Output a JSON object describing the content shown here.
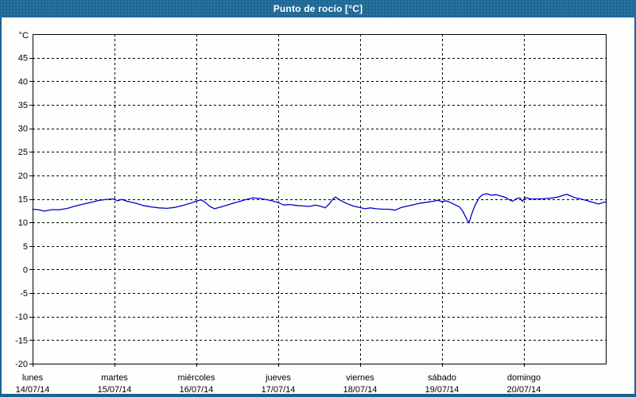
{
  "titlebar": {
    "title": "Punto de rocío [°C]"
  },
  "colors": {
    "titlebar_bg": "#1e6896",
    "frame_border": "#1c6292",
    "panel_bg": "#fdfffd",
    "plot_border": "#000000",
    "grid": "#000000",
    "line": "#0000cc",
    "text": "#000000",
    "title_text": "#ffffff"
  },
  "chart_data": {
    "type": "line",
    "title": "Punto de rocío [°C]",
    "y_unit_label": "°C",
    "ylim": [
      -20,
      50
    ],
    "y_tick_labels": [
      45,
      40,
      35,
      30,
      25,
      20,
      15,
      10,
      5,
      0,
      -5,
      -10,
      -15,
      -20
    ],
    "grid": "dashed",
    "legend": "none",
    "x_range_days": 7,
    "x_axis_days": [
      {
        "name": "lunes",
        "date": "14/07/14"
      },
      {
        "name": "martes",
        "date": "15/07/14"
      },
      {
        "name": "miércoles",
        "date": "16/07/14"
      },
      {
        "name": "jueves",
        "date": "17/07/14"
      },
      {
        "name": "viernes",
        "date": "18/07/14"
      },
      {
        "name": "sábado",
        "date": "19/07/14"
      },
      {
        "name": "domingo",
        "date": "20/07/14"
      }
    ],
    "series": [
      {
        "name": "Punto de rocío",
        "unit": "°C",
        "color": "#0000cc",
        "points": [
          [
            0.0,
            12.8
          ],
          [
            0.068,
            12.7
          ],
          [
            0.146,
            12.4
          ],
          [
            0.233,
            12.7
          ],
          [
            0.33,
            12.7
          ],
          [
            0.427,
            13.0
          ],
          [
            0.524,
            13.5
          ],
          [
            0.621,
            13.9
          ],
          [
            0.718,
            14.3
          ],
          [
            0.816,
            14.7
          ],
          [
            0.903,
            14.9
          ],
          [
            0.99,
            15.0
          ],
          [
            1.039,
            14.6
          ],
          [
            1.087,
            14.9
          ],
          [
            1.155,
            14.5
          ],
          [
            1.252,
            14.1
          ],
          [
            1.35,
            13.6
          ],
          [
            1.447,
            13.3
          ],
          [
            1.544,
            13.1
          ],
          [
            1.641,
            13.0
          ],
          [
            1.738,
            13.2
          ],
          [
            1.835,
            13.6
          ],
          [
            1.932,
            14.1
          ],
          [
            2.01,
            14.6
          ],
          [
            2.058,
            14.8
          ],
          [
            2.107,
            14.3
          ],
          [
            2.165,
            13.4
          ],
          [
            2.223,
            12.9
          ],
          [
            2.301,
            13.3
          ],
          [
            2.379,
            13.7
          ],
          [
            2.456,
            14.1
          ],
          [
            2.534,
            14.5
          ],
          [
            2.612,
            14.9
          ],
          [
            2.689,
            15.2
          ],
          [
            2.767,
            15.1
          ],
          [
            2.845,
            14.9
          ],
          [
            2.922,
            14.6
          ],
          [
            3.0,
            14.2
          ],
          [
            3.068,
            13.7
          ],
          [
            3.146,
            13.8
          ],
          [
            3.223,
            13.6
          ],
          [
            3.301,
            13.5
          ],
          [
            3.379,
            13.4
          ],
          [
            3.456,
            13.7
          ],
          [
            3.524,
            13.4
          ],
          [
            3.573,
            13.1
          ],
          [
            3.621,
            13.9
          ],
          [
            3.67,
            15.0
          ],
          [
            3.699,
            15.4
          ],
          [
            3.748,
            14.8
          ],
          [
            3.825,
            14.1
          ],
          [
            3.913,
            13.5
          ],
          [
            3.99,
            13.2
          ],
          [
            4.058,
            12.9
          ],
          [
            4.126,
            13.1
          ],
          [
            4.194,
            12.9
          ],
          [
            4.272,
            12.8
          ],
          [
            4.35,
            12.8
          ],
          [
            4.427,
            12.6
          ],
          [
            4.505,
            13.2
          ],
          [
            4.583,
            13.5
          ],
          [
            4.66,
            13.8
          ],
          [
            4.738,
            14.1
          ],
          [
            4.816,
            14.3
          ],
          [
            4.893,
            14.5
          ],
          [
            4.951,
            14.7
          ],
          [
            5.0,
            14.4
          ],
          [
            5.049,
            14.6
          ],
          [
            5.107,
            14.2
          ],
          [
            5.165,
            13.7
          ],
          [
            5.214,
            13.3
          ],
          [
            5.252,
            12.4
          ],
          [
            5.282,
            11.4
          ],
          [
            5.311,
            10.4
          ],
          [
            5.33,
            9.9
          ],
          [
            5.359,
            11.6
          ],
          [
            5.388,
            13.0
          ],
          [
            5.417,
            14.1
          ],
          [
            5.456,
            15.3
          ],
          [
            5.495,
            15.9
          ],
          [
            5.544,
            16.1
          ],
          [
            5.602,
            15.8
          ],
          [
            5.66,
            15.9
          ],
          [
            5.718,
            15.6
          ],
          [
            5.777,
            15.3
          ],
          [
            5.835,
            14.7
          ],
          [
            5.864,
            14.5
          ],
          [
            5.903,
            15.0
          ],
          [
            5.951,
            15.2
          ],
          [
            5.981,
            14.5
          ],
          [
            6.019,
            15.3
          ],
          [
            6.078,
            15.0
          ],
          [
            6.146,
            15.0
          ],
          [
            6.214,
            15.0
          ],
          [
            6.282,
            15.1
          ],
          [
            6.35,
            15.2
          ],
          [
            6.417,
            15.4
          ],
          [
            6.485,
            15.8
          ],
          [
            6.524,
            16.0
          ],
          [
            6.573,
            15.6
          ],
          [
            6.631,
            15.2
          ],
          [
            6.689,
            15.0
          ],
          [
            6.757,
            14.7
          ],
          [
            6.816,
            14.4
          ],
          [
            6.874,
            14.1
          ],
          [
            6.913,
            13.9
          ],
          [
            6.961,
            14.2
          ],
          [
            7.0,
            14.4
          ]
        ]
      }
    ]
  }
}
